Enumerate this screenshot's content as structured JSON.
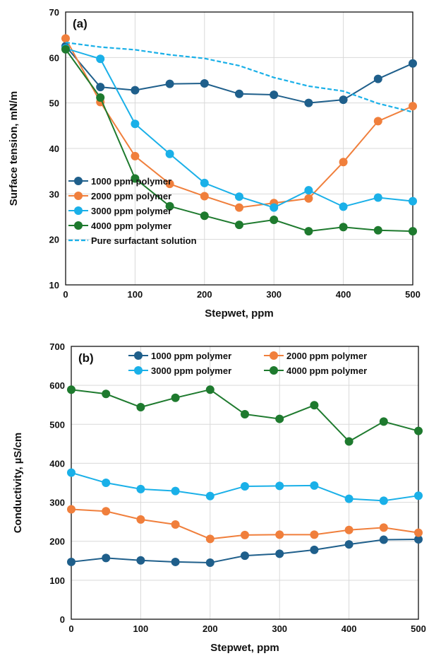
{
  "chart_data": [
    {
      "type": "line",
      "panel_label": "(a)",
      "title": "",
      "xlabel": "Stepwet, ppm",
      "ylabel": "Surface tension, mN/m",
      "xlim": [
        0,
        500
      ],
      "ylim": [
        10,
        70
      ],
      "xticks": [
        0,
        100,
        200,
        300,
        400,
        500
      ],
      "yticks": [
        10,
        20,
        30,
        40,
        50,
        60,
        70
      ],
      "grid": true,
      "legend_position": "bottom-left",
      "x": [
        0,
        50,
        100,
        150,
        200,
        250,
        300,
        350,
        400,
        450,
        500
      ],
      "series": [
        {
          "name": "1000 ppm polymer",
          "color": "#1f5f8b",
          "style": "line-marker",
          "values": [
            62.5,
            53.5,
            52.8,
            54.2,
            54.3,
            52.0,
            51.8,
            50.0,
            50.7,
            55.3,
            58.7
          ]
        },
        {
          "name": "2000 ppm polymer",
          "color": "#f07f3c",
          "style": "line-marker",
          "values": [
            64.2,
            50.2,
            38.3,
            32.2,
            29.5,
            27.0,
            28.0,
            29.0,
            37.0,
            46.0,
            49.3
          ]
        },
        {
          "name": "3000 ppm polymer",
          "color": "#1ab0e8",
          "style": "line-marker",
          "values": [
            62.0,
            59.7,
            45.4,
            38.8,
            32.4,
            29.4,
            27.0,
            30.8,
            27.2,
            29.2,
            28.4
          ]
        },
        {
          "name": "4000 ppm polymer",
          "color": "#1e7a2e",
          "style": "line-marker",
          "values": [
            61.8,
            51.2,
            33.4,
            27.3,
            25.2,
            23.2,
            24.3,
            21.8,
            22.7,
            22.0,
            21.8
          ]
        },
        {
          "name": "Pure surfactant solution",
          "color": "#1ab0e8",
          "style": "dashed",
          "values": [
            63.3,
            62.3,
            61.7,
            60.6,
            59.8,
            58.2,
            55.6,
            53.7,
            52.6,
            49.9,
            48.0
          ]
        }
      ]
    },
    {
      "type": "line",
      "panel_label": "(b)",
      "title": "",
      "xlabel": "Stepwet, ppm",
      "ylabel": "Conductivity, µS/cm",
      "xlim": [
        0,
        500
      ],
      "ylim": [
        0,
        700
      ],
      "xticks": [
        0,
        100,
        200,
        300,
        400,
        500
      ],
      "yticks": [
        0,
        100,
        200,
        300,
        400,
        500,
        600,
        700
      ],
      "grid": true,
      "legend_position": "top",
      "x": [
        0,
        50,
        100,
        150,
        200,
        250,
        300,
        350,
        400,
        450,
        500
      ],
      "series": [
        {
          "name": "1000 ppm polymer",
          "color": "#1f5f8b",
          "style": "line-marker",
          "values": [
            147,
            157,
            151,
            147,
            145,
            163,
            168,
            178,
            192,
            204,
            205
          ]
        },
        {
          "name": "2000 ppm polymer",
          "color": "#f07f3c",
          "style": "line-marker",
          "values": [
            282,
            277,
            256,
            243,
            206,
            216,
            217,
            217,
            229,
            235,
            222
          ]
        },
        {
          "name": "3000 ppm polymer",
          "color": "#1ab0e8",
          "style": "line-marker",
          "values": [
            376,
            350,
            334,
            329,
            316,
            341,
            342,
            343,
            309,
            304,
            317
          ]
        },
        {
          "name": "4000 ppm polymer",
          "color": "#1e7a2e",
          "style": "line-marker",
          "values": [
            589,
            578,
            544,
            568,
            589,
            526,
            514,
            549,
            456,
            507,
            483
          ]
        }
      ]
    }
  ]
}
